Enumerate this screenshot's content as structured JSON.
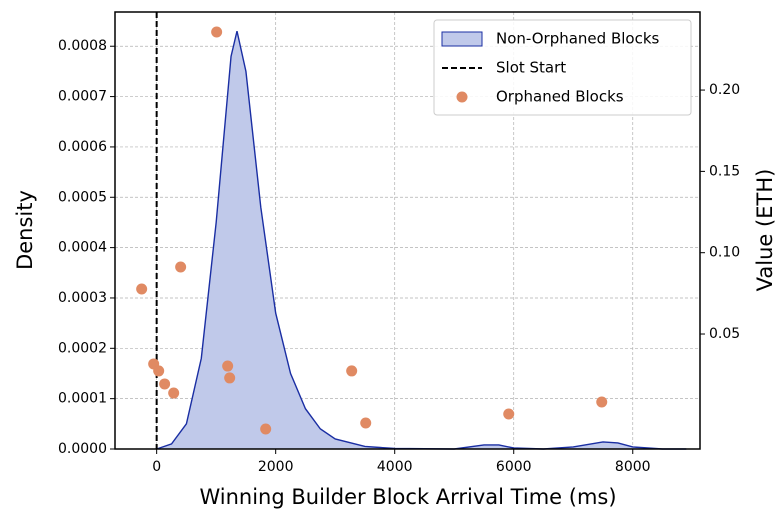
{
  "chart_data": {
    "type": "kde_scatter",
    "xlabel": "Winning Builder Block Arrival Time (ms)",
    "ylabel": "Density",
    "y2label": "Value (ETH)",
    "xlim": [
      -700,
      9130
    ],
    "ylim": [
      0,
      0.000868
    ],
    "y2lim": [
      -0.0207,
      0.248
    ],
    "xticks": [
      0,
      2000,
      4000,
      6000,
      8000
    ],
    "yticks": [
      {
        "value": 0,
        "label": "0.0000"
      },
      {
        "value": 0.0001,
        "label": "0.0001"
      },
      {
        "value": 0.0002,
        "label": "0.0002"
      },
      {
        "value": 0.0003,
        "label": "0.0003"
      },
      {
        "value": 0.0004,
        "label": "0.0004"
      },
      {
        "value": 0.0005,
        "label": "0.0005"
      },
      {
        "value": 0.0006,
        "label": "0.0006"
      },
      {
        "value": 0.0007,
        "label": "0.0007"
      },
      {
        "value": 0.0008,
        "label": "0.0008"
      }
    ],
    "y2ticks": [
      0.05,
      {
        "value": 0.1,
        "label": "0.10"
      },
      0.15,
      {
        "value": 0.2,
        "label": "0.20"
      }
    ],
    "grid": true,
    "legend": "upper right",
    "series": [
      {
        "name": "Non-Orphaned Blocks",
        "type": "area",
        "color": "#1a2ea3",
        "fill": "#c0c9ea",
        "x": [
          0,
          250,
          500,
          750,
          1000,
          1250,
          1350,
          1500,
          1750,
          2000,
          2250,
          2500,
          2750,
          3000,
          3500,
          4000,
          5000,
          5500,
          5750,
          6000,
          6500,
          7000,
          7500,
          7750,
          8000,
          8500,
          8900
        ],
        "values": [
          0,
          1e-05,
          5e-05,
          0.00018,
          0.00045,
          0.00078,
          0.00083,
          0.00075,
          0.00048,
          0.00027,
          0.00015,
          8e-05,
          4e-05,
          2e-05,
          5e-06,
          1e-06,
          0,
          8e-06,
          8e-06,
          2e-06,
          0,
          4e-06,
          1.4e-05,
          1.2e-05,
          4e-06,
          0,
          0
        ]
      },
      {
        "name": "Orphaned Blocks",
        "type": "scatter",
        "axis": "y2",
        "color": "#e08a63",
        "x": [
          -252,
          1008,
          403,
          -50,
          34,
          134,
          286,
          1193,
          1227,
          1832,
          3277,
          3513,
          5916,
          7479
        ],
        "values": [
          0.0777,
          0.2357,
          0.0912,
          0.0316,
          0.0273,
          0.0193,
          0.0137,
          0.0303,
          0.023,
          -0.0084,
          0.0273,
          -0.0047,
          0.0008,
          0.0082
        ]
      }
    ],
    "vline": {
      "name": "Slot Start",
      "x": 0,
      "color": "#000000"
    }
  }
}
